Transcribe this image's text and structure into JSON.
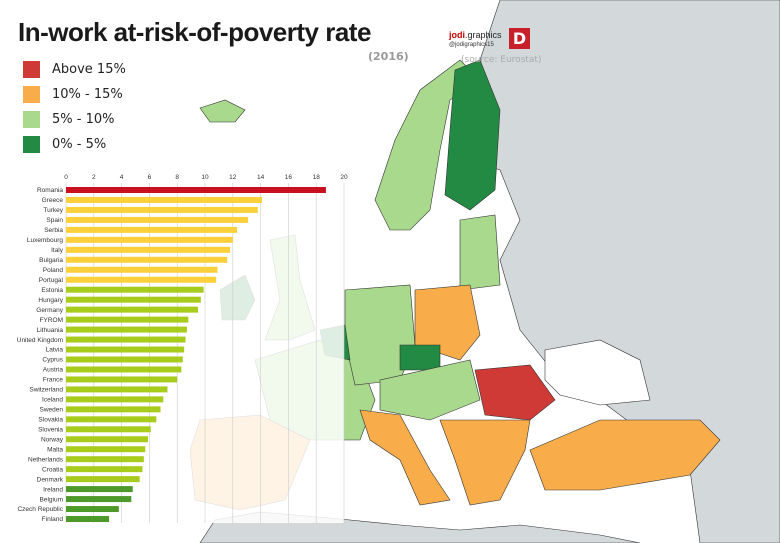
{
  "header": {
    "title": "In-work at-risk-of-poverty rate",
    "year": "(2016)",
    "brand_name": "jodi",
    "brand_suffix": ".graphics",
    "brand_handle": "@jodigraphics15",
    "logo_letter": "D",
    "source": "(source: Eurostat)"
  },
  "legend": [
    {
      "label": "Above 15%",
      "color": "#d03a36"
    },
    {
      "label": "10% - 15%",
      "color": "#f9ac4a"
    },
    {
      "label": "5% - 10%",
      "color": "#a8d98c"
    },
    {
      "label": "0% - 5%",
      "color": "#238a43"
    }
  ],
  "chart_data": {
    "type": "bar",
    "orientation": "horizontal",
    "xlim": [
      0,
      20
    ],
    "x_ticks": [
      "0",
      "2",
      "4",
      "6",
      "8",
      "10",
      "12",
      "14",
      "16",
      "18",
      "20"
    ],
    "grid": true,
    "categories": [
      "Romania",
      "Greece",
      "Turkey",
      "Spain",
      "Serbia",
      "Luxembourg",
      "Italy",
      "Bulgaria",
      "Poland",
      "Portugal",
      "Estonia",
      "Hungary",
      "Germany",
      "FYROM",
      "Lithuania",
      "United Kingdom",
      "Latvia",
      "Cyprus",
      "Austria",
      "France",
      "Switzerland",
      "Iceland",
      "Sweden",
      "Slovakia",
      "Slovenia",
      "Norway",
      "Malta",
      "Netherlands",
      "Croatia",
      "Denmark",
      "Ireland",
      "Belgium",
      "Czech Republic",
      "Finland"
    ],
    "values": [
      18.7,
      14.1,
      13.8,
      13.1,
      12.3,
      12.0,
      11.8,
      11.6,
      10.9,
      10.8,
      9.9,
      9.7,
      9.5,
      8.8,
      8.7,
      8.6,
      8.5,
      8.4,
      8.3,
      8.0,
      7.3,
      7.0,
      6.8,
      6.5,
      6.1,
      5.9,
      5.7,
      5.6,
      5.5,
      5.3,
      4.8,
      4.7,
      3.8,
      3.1
    ],
    "bar_colors": {
      "above15": "#c8101e",
      "10to15": "#fcd03a",
      "5to10": "#a8cc1c",
      "0to5": "#4d9a2a"
    }
  }
}
